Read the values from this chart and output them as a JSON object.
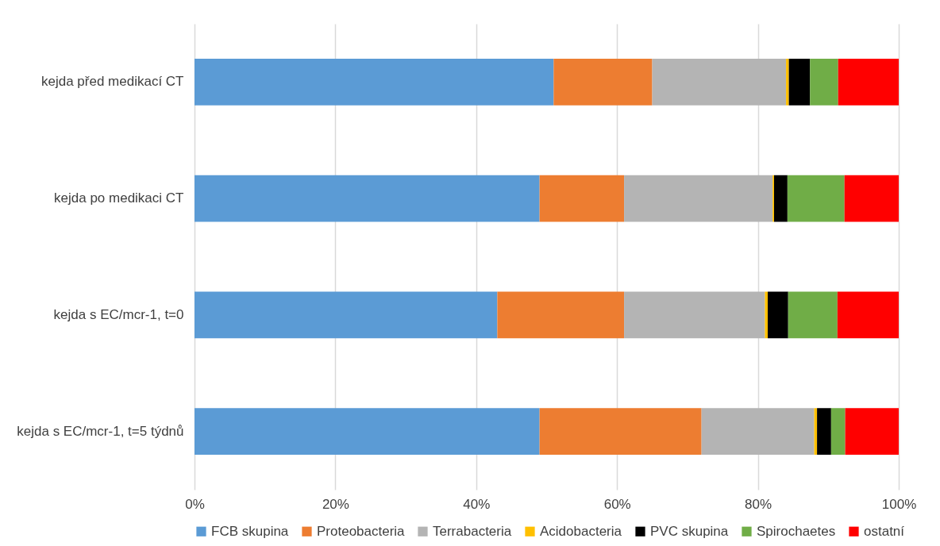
{
  "chart_data": {
    "type": "bar",
    "orientation": "horizontal",
    "stacked": true,
    "categories": [
      "kejda před medikací CT",
      "kejda po medikaci CT",
      "kejda s EC/mcr-1, t=0",
      "kejda s EC/mcr-1, t=5 týdnů"
    ],
    "series": [
      {
        "name": "FCB skupina",
        "color": "#5b9bd5",
        "values": [
          51,
          49,
          43,
          49
        ]
      },
      {
        "name": "Proteobacteria",
        "color": "#ed7d31",
        "values": [
          14,
          12,
          18,
          23
        ]
      },
      {
        "name": "Terrabacteria",
        "color": "#b4b4b4",
        "values": [
          19,
          21.1,
          20,
          16
        ]
      },
      {
        "name": "Acidobacteria",
        "color": "#ffc000",
        "values": [
          0.4,
          0.2,
          0.4,
          0.4
        ]
      },
      {
        "name": "PVC skupina",
        "color": "#000000",
        "values": [
          3,
          1.9,
          2.9,
          2
        ]
      },
      {
        "name": "Spirochaetes",
        "color": "#70ad47",
        "values": [
          4,
          8.1,
          7,
          2
        ]
      },
      {
        "name": "ostatní",
        "color": "#ff0000",
        "values": [
          8.6,
          7.7,
          8.7,
          7.6
        ]
      }
    ],
    "xlim": [
      0,
      100
    ],
    "xticks": [
      {
        "value": 0,
        "label": "0%"
      },
      {
        "value": 20,
        "label": "20%"
      },
      {
        "value": 40,
        "label": "40%"
      },
      {
        "value": 60,
        "label": "60%"
      },
      {
        "value": 80,
        "label": "80%"
      },
      {
        "value": 100,
        "label": "100%"
      }
    ],
    "grid": "x",
    "legend": "bottom"
  }
}
